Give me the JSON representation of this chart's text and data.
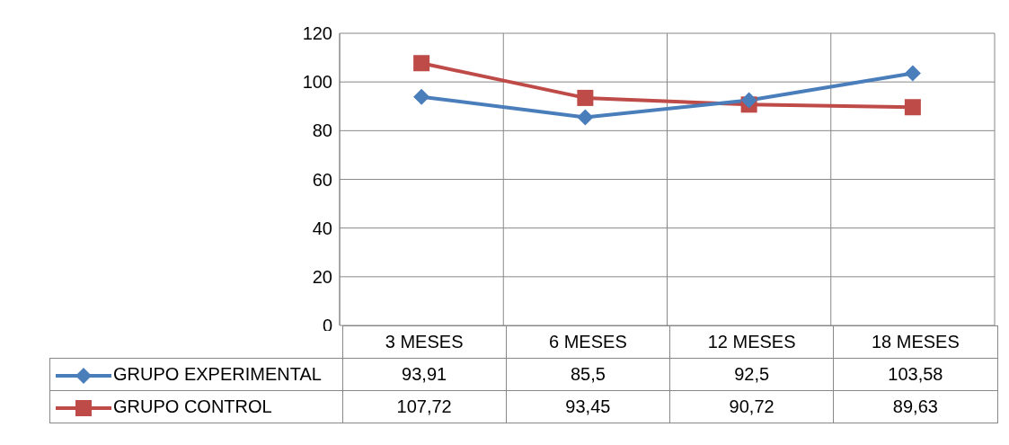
{
  "chart_data": {
    "type": "line",
    "categories": [
      "3 MESES",
      "6 MESES",
      "12 MESES",
      "18 MESES"
    ],
    "series": [
      {
        "name": "GRUPO EXPERIMENTAL",
        "color": "#4a7ebb",
        "marker": "diamond",
        "values": [
          93.91,
          85.5,
          92.5,
          103.58
        ],
        "value_labels": [
          "93,91",
          "85,5",
          "92,5",
          "103,58"
        ]
      },
      {
        "name": "GRUPO CONTROL",
        "color": "#be4b48",
        "marker": "square",
        "values": [
          107.72,
          93.45,
          90.72,
          89.63
        ],
        "value_labels": [
          "107,72",
          "93,45",
          "90,72",
          "89,63"
        ]
      }
    ],
    "ylim": [
      0,
      120
    ],
    "yticks": [
      0,
      20,
      40,
      60,
      80,
      100,
      120
    ],
    "grid": true,
    "legend": "left"
  }
}
